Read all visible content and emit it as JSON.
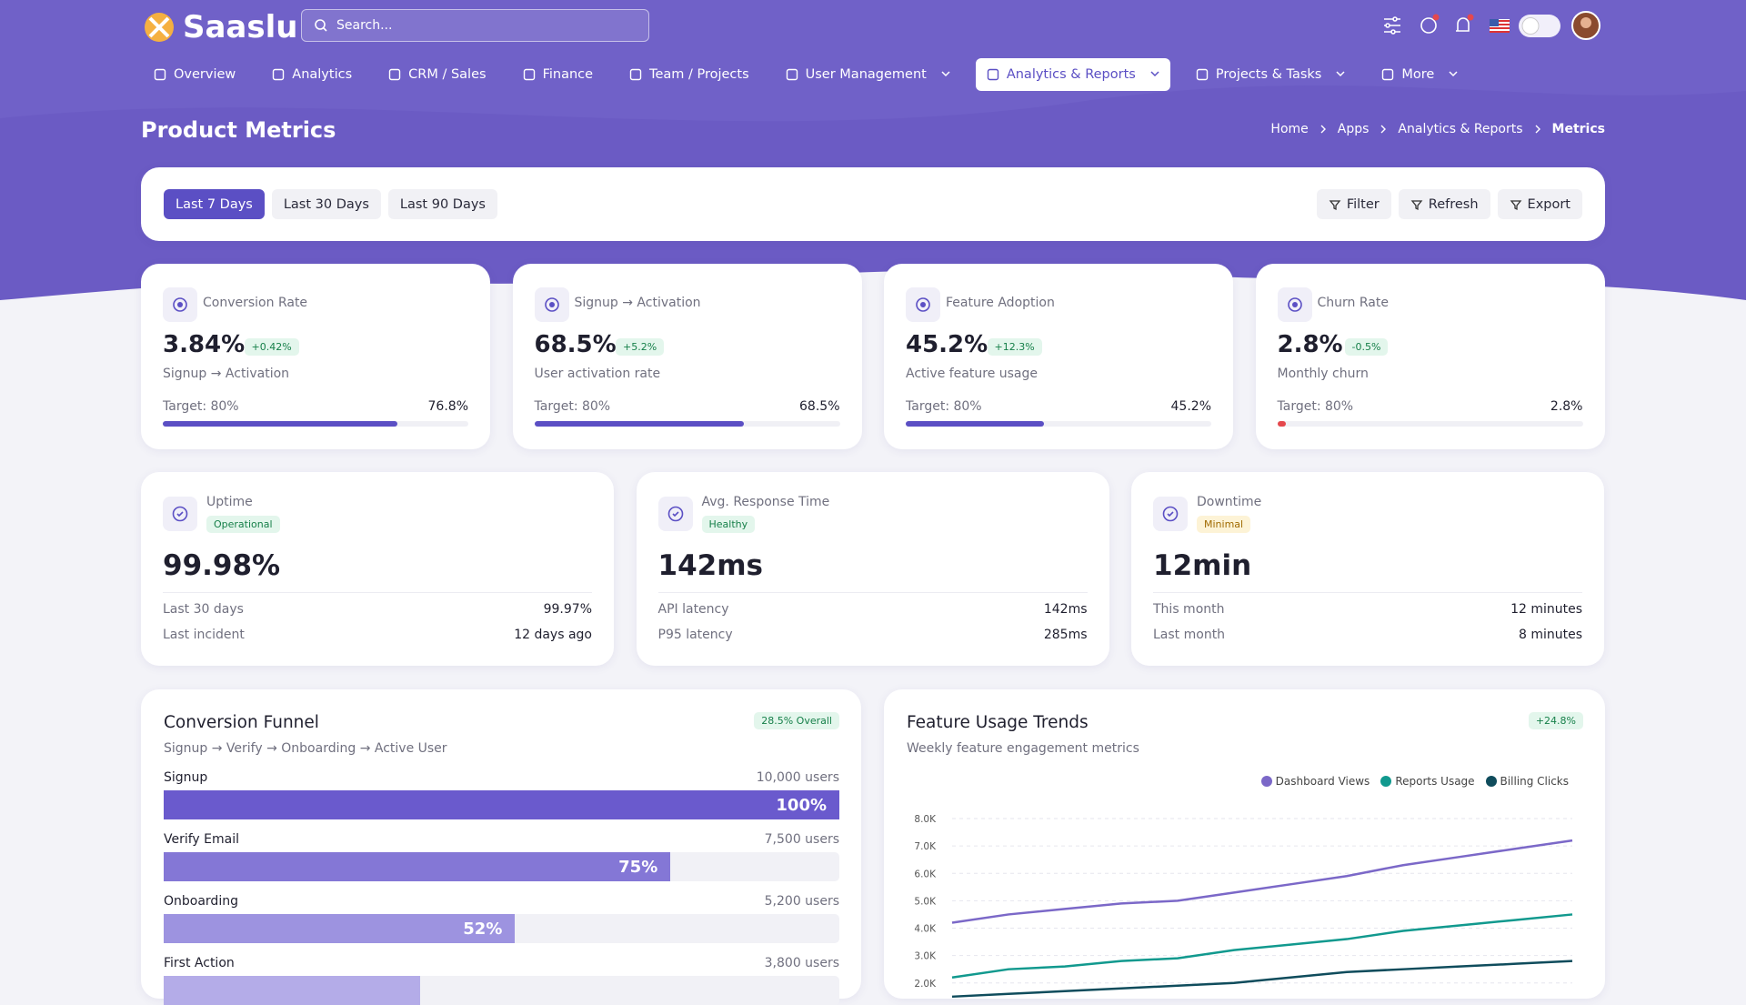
{
  "header": {
    "logo": "Saaslu",
    "search_placeholder": "Search..."
  },
  "nav": [
    {
      "label": "Overview"
    },
    {
      "label": "Analytics"
    },
    {
      "label": "CRM / Sales"
    },
    {
      "label": "Finance"
    },
    {
      "label": "Team / Projects"
    },
    {
      "label": "User Management",
      "dropdown": true
    },
    {
      "label": "Analytics & Reports",
      "dropdown": true,
      "active": true
    },
    {
      "label": "Projects & Tasks",
      "dropdown": true
    },
    {
      "label": "More",
      "dropdown": true
    }
  ],
  "page": {
    "title": "Product Metrics",
    "breadcrumb": [
      "Home",
      "Apps",
      "Analytics & Reports",
      "Metrics"
    ]
  },
  "filters": {
    "ranges": [
      "Last 7 Days",
      "Last 30 Days",
      "Last 90 Days"
    ],
    "active_range": 0,
    "actions": [
      "Filter",
      "Refresh",
      "Export"
    ]
  },
  "kpis": [
    {
      "label": "Conversion Rate",
      "value": "3.84%",
      "change": "+0.42%",
      "subtitle": "Signup → Activation",
      "target": "Target: 80%",
      "current": "76.8%",
      "bar_color": "#5b4fc4"
    },
    {
      "label": "Signup → Activation",
      "value": "68.5%",
      "change": "+5.2%",
      "subtitle": "User activation rate",
      "target": "Target: 80%",
      "current": "68.5%",
      "bar_color": "#5b4fc4"
    },
    {
      "label": "Feature Adoption",
      "value": "45.2%",
      "change": "+12.3%",
      "subtitle": "Active feature usage",
      "target": "Target: 80%",
      "current": "45.2%",
      "bar_color": "#5b4fc4"
    },
    {
      "label": "Churn Rate",
      "value": "2.8%",
      "change": "-0.5%",
      "subtitle": "Monthly churn",
      "target": "Target: 80%",
      "current": "2.8%",
      "bar_color": "#e5484d"
    }
  ],
  "status": [
    {
      "label": "Uptime",
      "badge": "Operational",
      "badge_tone": "success",
      "value": "99.98%",
      "rows": [
        [
          "Last 30 days",
          "99.97%"
        ],
        [
          "Last incident",
          "12 days ago"
        ]
      ]
    },
    {
      "label": "Avg. Response Time",
      "badge": "Healthy",
      "badge_tone": "success",
      "value": "142ms",
      "rows": [
        [
          "API latency",
          "142ms"
        ],
        [
          "P95 latency",
          "285ms"
        ]
      ]
    },
    {
      "label": "Downtime",
      "badge": "Minimal",
      "badge_tone": "warning",
      "value": "12min",
      "rows": [
        [
          "This month",
          "12 minutes"
        ],
        [
          "Last month",
          "8 minutes"
        ]
      ]
    }
  ],
  "funnel": {
    "title": "Conversion Funnel",
    "badge": "28.5% Overall",
    "subtitle": "Signup → Verify → Onboarding → Active User",
    "stages": [
      {
        "name": "Signup",
        "users": "10,000 users",
        "percent": "100%",
        "color": "#6a5acd"
      },
      {
        "name": "Verify Email",
        "users": "7,500 users",
        "percent": "75%",
        "color": "#8477d6"
      },
      {
        "name": "Onboarding",
        "users": "5,200 users",
        "percent": "52%",
        "color": "#9d93e0"
      },
      {
        "name": "First Action",
        "users": "3,800 users",
        "color": "#b4ace8"
      }
    ]
  },
  "chart_data": {
    "type": "line",
    "title": "Feature Usage Trends",
    "subtitle": "Weekly feature engagement metrics",
    "badge": "+24.8%",
    "legend": "top-right",
    "grid": true,
    "ylim": [
      0,
      8000
    ],
    "yticks": [
      {
        "value": 2000,
        "label": "2.0K"
      },
      {
        "value": 3000,
        "label": "3.0K"
      },
      {
        "value": 4000,
        "label": "4.0K"
      },
      {
        "value": 5000,
        "label": "5.0K"
      },
      {
        "value": 6000,
        "label": "6.0K"
      },
      {
        "value": 7000,
        "label": "7.0K"
      },
      {
        "value": 8000,
        "label": "8.0K"
      }
    ],
    "series": [
      {
        "name": "Dashboard Views",
        "color": "#7b68c8",
        "values": [
          4200,
          4500,
          4700,
          4900,
          5000,
          5300,
          5600,
          5900,
          6300,
          6600,
          6900,
          7200
        ]
      },
      {
        "name": "Reports Usage",
        "color": "#11998e",
        "values": [
          2200,
          2500,
          2600,
          2800,
          2900,
          3200,
          3400,
          3600,
          3900,
          4100,
          4300,
          4500
        ]
      },
      {
        "name": "Billing Clicks",
        "color": "#0f4c5c",
        "values": [
          1500,
          1600,
          1700,
          1800,
          1900,
          2000,
          2200,
          2400,
          2500,
          2600,
          2700,
          2800
        ]
      }
    ]
  }
}
